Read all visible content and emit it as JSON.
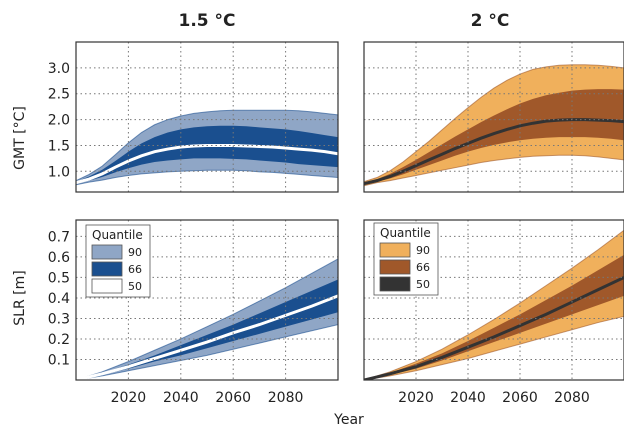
{
  "chart_data": [
    {
      "type": "area",
      "panel": "top-left",
      "title": "1.5 °C",
      "ylabel": "GMT [°C]",
      "xlabel": "",
      "xlim": [
        2000,
        2100
      ],
      "ylim": [
        0.6,
        3.5
      ],
      "yticks": [
        1.0,
        1.5,
        2.0,
        2.5,
        3.0
      ],
      "xticks": [
        2020,
        2040,
        2060,
        2080
      ],
      "grid": true,
      "colors": {
        "q90": "#8fa6c6",
        "q66": "#1a4f8f",
        "q50": "#ffffff"
      },
      "x": [
        2000,
        2005,
        2010,
        2015,
        2020,
        2025,
        2030,
        2035,
        2040,
        2045,
        2050,
        2055,
        2060,
        2065,
        2070,
        2075,
        2080,
        2085,
        2090,
        2095,
        2100
      ],
      "q90_low": [
        0.74,
        0.79,
        0.83,
        0.88,
        0.92,
        0.95,
        0.97,
        0.99,
        1.0,
        1.01,
        1.02,
        1.02,
        1.02,
        1.01,
        0.99,
        0.98,
        0.96,
        0.94,
        0.92,
        0.9,
        0.88
      ],
      "q66_low": [
        0.76,
        0.82,
        0.89,
        0.98,
        1.06,
        1.13,
        1.18,
        1.21,
        1.23,
        1.25,
        1.25,
        1.25,
        1.24,
        1.23,
        1.21,
        1.19,
        1.17,
        1.14,
        1.12,
        1.1,
        1.08
      ],
      "q50": [
        0.78,
        0.85,
        0.95,
        1.08,
        1.2,
        1.3,
        1.38,
        1.43,
        1.47,
        1.49,
        1.5,
        1.5,
        1.5,
        1.49,
        1.48,
        1.47,
        1.45,
        1.43,
        1.41,
        1.38,
        1.34
      ],
      "q66_high": [
        0.8,
        0.9,
        1.03,
        1.2,
        1.38,
        1.54,
        1.66,
        1.75,
        1.81,
        1.85,
        1.87,
        1.88,
        1.88,
        1.87,
        1.85,
        1.83,
        1.81,
        1.78,
        1.74,
        1.7,
        1.66
      ],
      "q90_high": [
        0.82,
        0.94,
        1.1,
        1.32,
        1.55,
        1.75,
        1.9,
        2.0,
        2.07,
        2.12,
        2.15,
        2.17,
        2.18,
        2.18,
        2.18,
        2.18,
        2.18,
        2.17,
        2.15,
        2.12,
        2.09
      ]
    },
    {
      "type": "area",
      "panel": "top-right",
      "title": "2 °C",
      "ylabel": "",
      "xlabel": "",
      "xlim": [
        2000,
        2100
      ],
      "ylim": [
        0.6,
        3.5
      ],
      "yticks": [
        1.0,
        1.5,
        2.0,
        2.5,
        3.0
      ],
      "xticks": [
        2020,
        2040,
        2060,
        2080
      ],
      "grid": true,
      "colors": {
        "q90": "#f0b05c",
        "q66": "#a0582a",
        "q50": "#333333"
      },
      "x": [
        2000,
        2005,
        2010,
        2015,
        2020,
        2025,
        2030,
        2035,
        2040,
        2045,
        2050,
        2055,
        2060,
        2065,
        2070,
        2075,
        2080,
        2085,
        2090,
        2095,
        2100
      ],
      "q90_low": [
        0.72,
        0.78,
        0.82,
        0.87,
        0.92,
        0.97,
        1.02,
        1.07,
        1.12,
        1.17,
        1.21,
        1.24,
        1.27,
        1.29,
        1.3,
        1.31,
        1.31,
        1.3,
        1.28,
        1.25,
        1.22
      ],
      "q66_low": [
        0.74,
        0.8,
        0.86,
        0.94,
        1.03,
        1.12,
        1.21,
        1.3,
        1.38,
        1.45,
        1.51,
        1.56,
        1.6,
        1.63,
        1.65,
        1.66,
        1.66,
        1.66,
        1.65,
        1.63,
        1.6
      ],
      "q50": [
        0.76,
        0.82,
        0.9,
        1.0,
        1.11,
        1.22,
        1.33,
        1.44,
        1.54,
        1.64,
        1.73,
        1.81,
        1.88,
        1.93,
        1.97,
        1.99,
        2.0,
        2.0,
        1.99,
        1.98,
        1.96
      ],
      "q66_high": [
        0.78,
        0.85,
        0.95,
        1.08,
        1.22,
        1.37,
        1.52,
        1.67,
        1.81,
        1.95,
        2.08,
        2.2,
        2.31,
        2.4,
        2.47,
        2.52,
        2.56,
        2.58,
        2.59,
        2.59,
        2.58
      ],
      "q90_high": [
        0.8,
        0.88,
        1.01,
        1.18,
        1.38,
        1.58,
        1.8,
        2.02,
        2.23,
        2.43,
        2.61,
        2.76,
        2.88,
        2.97,
        3.02,
        3.05,
        3.06,
        3.06,
        3.05,
        3.03,
        3.0
      ]
    },
    {
      "type": "area",
      "panel": "bottom-left",
      "title": "",
      "ylabel": "SLR [m]",
      "xlabel": "Year",
      "xlim": [
        2000,
        2100
      ],
      "ylim": [
        0.0,
        0.78
      ],
      "yticks": [
        0.1,
        0.2,
        0.3,
        0.4,
        0.5,
        0.6,
        0.7
      ],
      "xticks": [
        2020,
        2040,
        2060,
        2080
      ],
      "grid": true,
      "colors": {
        "q90": "#8fa6c6",
        "q66": "#1a4f8f",
        "q50": "#ffffff"
      },
      "x": [
        2000,
        2100
      ],
      "x_full": [
        2000,
        2010,
        2020,
        2030,
        2040,
        2050,
        2060,
        2070,
        2080,
        2090,
        2100
      ],
      "q90_low": [
        0.0,
        0.02,
        0.045,
        0.07,
        0.095,
        0.12,
        0.15,
        0.18,
        0.21,
        0.24,
        0.27
      ],
      "q66_low": [
        0.0,
        0.025,
        0.055,
        0.09,
        0.12,
        0.155,
        0.19,
        0.225,
        0.26,
        0.295,
        0.33
      ],
      "q50": [
        0.0,
        0.03,
        0.065,
        0.105,
        0.145,
        0.185,
        0.23,
        0.27,
        0.315,
        0.36,
        0.41
      ],
      "q66_high": [
        0.0,
        0.035,
        0.075,
        0.12,
        0.17,
        0.22,
        0.27,
        0.325,
        0.38,
        0.435,
        0.49
      ],
      "q90_high": [
        0.0,
        0.04,
        0.09,
        0.145,
        0.2,
        0.26,
        0.32,
        0.385,
        0.45,
        0.52,
        0.59
      ]
    },
    {
      "type": "area",
      "panel": "bottom-right",
      "title": "",
      "ylabel": "",
      "xlabel": "",
      "xlim": [
        2000,
        2100
      ],
      "ylim": [
        0.0,
        0.78
      ],
      "yticks": [
        0.1,
        0.2,
        0.3,
        0.4,
        0.5,
        0.6,
        0.7
      ],
      "xticks": [
        2020,
        2040,
        2060,
        2080
      ],
      "grid": true,
      "colors": {
        "q90": "#f0b05c",
        "q66": "#a0582a",
        "q50": "#333333"
      },
      "x_full": [
        2000,
        2010,
        2020,
        2030,
        2040,
        2050,
        2060,
        2070,
        2080,
        2090,
        2100
      ],
      "q90_low": [
        0.0,
        0.02,
        0.045,
        0.075,
        0.105,
        0.14,
        0.175,
        0.21,
        0.245,
        0.28,
        0.31
      ],
      "q66_low": [
        0.0,
        0.025,
        0.055,
        0.095,
        0.14,
        0.185,
        0.23,
        0.275,
        0.32,
        0.365,
        0.41
      ],
      "q50": [
        0.0,
        0.03,
        0.065,
        0.11,
        0.16,
        0.21,
        0.265,
        0.32,
        0.38,
        0.44,
        0.5
      ],
      "q66_high": [
        0.0,
        0.035,
        0.08,
        0.13,
        0.19,
        0.255,
        0.32,
        0.39,
        0.46,
        0.535,
        0.61
      ],
      "q90_high": [
        0.0,
        0.04,
        0.09,
        0.15,
        0.22,
        0.295,
        0.375,
        0.46,
        0.545,
        0.635,
        0.73
      ]
    }
  ],
  "legends": [
    {
      "title": "Quantile",
      "placement": "top-left",
      "entries": [
        "90",
        "66",
        "50"
      ],
      "colors": [
        "#8fa6c6",
        "#1a4f8f",
        "#ffffff"
      ]
    },
    {
      "title": "Quantile",
      "placement": "top-left",
      "entries": [
        "90",
        "66",
        "50"
      ],
      "colors": [
        "#f0b05c",
        "#a0582a",
        "#333333"
      ]
    }
  ],
  "shared_xlabel": "Year"
}
